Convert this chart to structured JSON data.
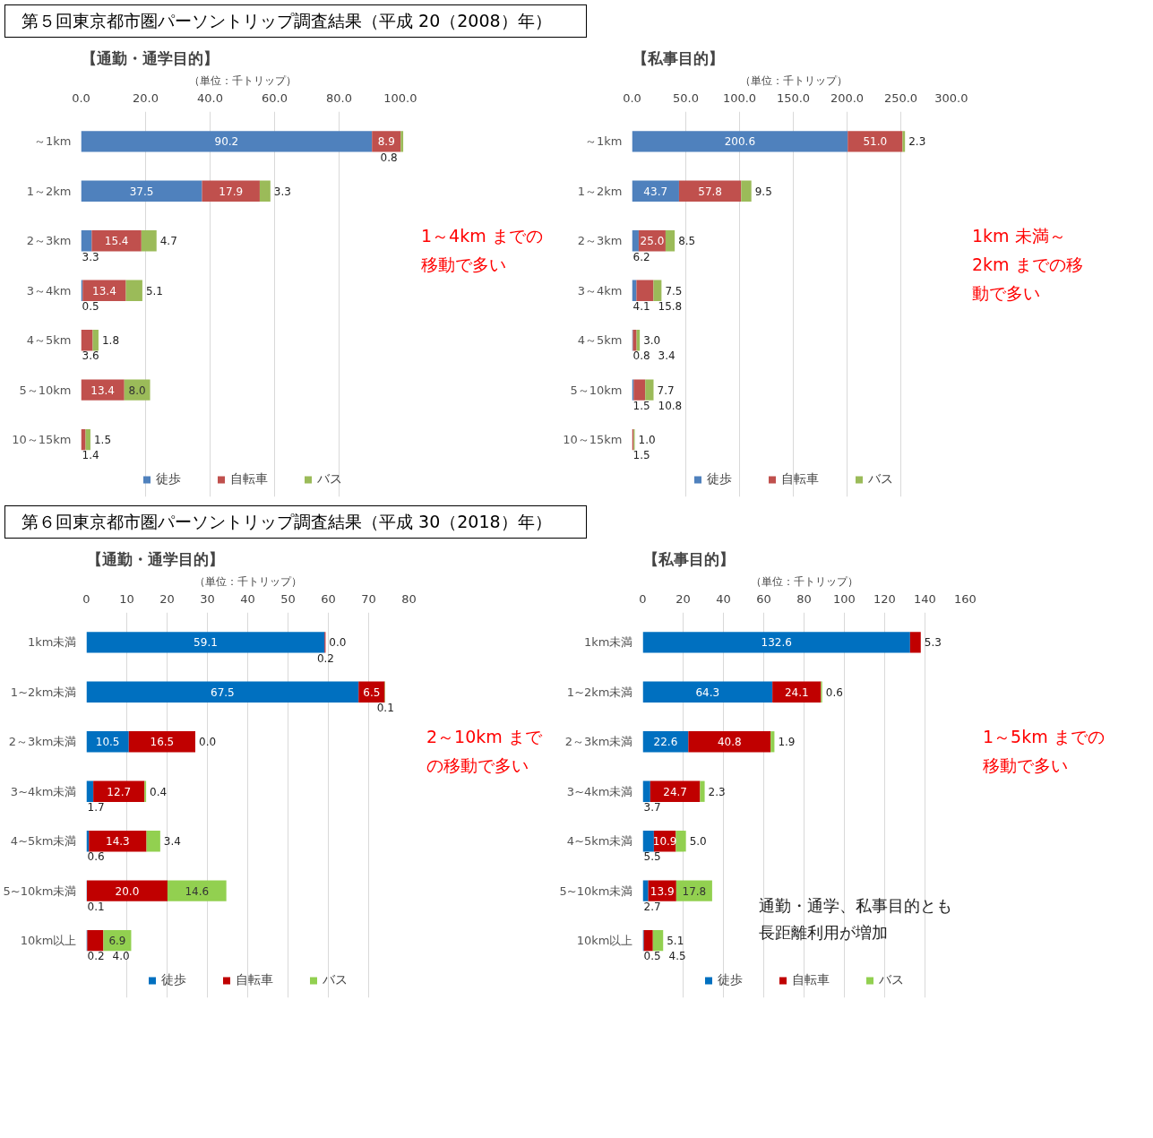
{
  "chart_data": [
    {
      "type": "bar",
      "orientation": "horizontal",
      "stacked": true,
      "subtitle": "第５回東京都市圏パーソントリップ調査結果（平成 20（2008）年）",
      "title": "【通勤・通学目的】",
      "xlabel": "（単位：千トリップ）",
      "categories": [
        "～1km",
        "1～2km",
        "2～3km",
        "3～4km",
        "4～5km",
        "5～10km",
        "10～15km"
      ],
      "series": [
        {
          "name": "徒歩",
          "color": "#4f81bd",
          "values": [
            90.2,
            37.5,
            3.3,
            0.5,
            null,
            null,
            null
          ],
          "value_labels": [
            "90.2",
            "37.5",
            "3.3",
            "0.5",
            null,
            null,
            null
          ]
        },
        {
          "name": "自転車",
          "color": "#c0504d",
          "values": [
            8.9,
            17.9,
            15.4,
            13.4,
            3.6,
            13.4,
            1.4
          ],
          "value_labels": [
            "8.9",
            "17.9",
            "15.4",
            "13.4",
            "3.6",
            "13.4",
            "1.4"
          ]
        },
        {
          "name": "バス",
          "color": "#9bbb59",
          "values": [
            0.8,
            3.3,
            4.7,
            5.1,
            1.8,
            8.0,
            1.5
          ],
          "value_labels": [
            "0.8",
            "3.3",
            "4.7",
            "5.1",
            "1.8",
            "8.0",
            "1.5"
          ]
        }
      ],
      "xlim": [
        0,
        100
      ],
      "xticks": [
        {
          "value": 0,
          "label": "0.0"
        },
        {
          "value": 20,
          "label": "20.0"
        },
        {
          "value": 40,
          "label": "40.0"
        },
        {
          "value": 60,
          "label": "60.0"
        },
        {
          "value": 80,
          "label": "80.0"
        },
        {
          "value": 100,
          "label": "100.0"
        }
      ],
      "grid": "x",
      "legend": "bottom",
      "annotations": [
        "1～4km までの移動で多い"
      ]
    },
    {
      "type": "bar",
      "orientation": "horizontal",
      "stacked": true,
      "title": "【私事目的】",
      "xlabel": "（単位：千トリップ）",
      "categories": [
        "～1km",
        "1～2km",
        "2～3km",
        "3～4km",
        "4～5km",
        "5～10km",
        "10～15km"
      ],
      "series": [
        {
          "name": "徒歩",
          "color": "#4f81bd",
          "values": [
            200.6,
            43.7,
            6.2,
            4.1,
            0.8,
            1.5,
            null
          ],
          "value_labels": [
            "200.6",
            "43.7",
            "6.2",
            "4.1",
            "0.8",
            "1.5",
            null
          ]
        },
        {
          "name": "自転車",
          "color": "#c0504d",
          "values": [
            51.0,
            57.8,
            25.0,
            15.8,
            3.4,
            10.8,
            1.5
          ],
          "value_labels": [
            "51.0",
            "57.8",
            "25.0",
            "15.8",
            "3.4",
            "10.8",
            "1.5"
          ]
        },
        {
          "name": "バス",
          "color": "#9bbb59",
          "values": [
            2.3,
            9.5,
            8.5,
            7.5,
            3.0,
            7.7,
            1.0
          ],
          "value_labels": [
            "2.3",
            "9.5",
            "8.5",
            "7.5",
            "3.0",
            "7.7",
            "1.0"
          ]
        }
      ],
      "xlim": [
        0,
        300
      ],
      "xticks": [
        {
          "value": 0,
          "label": "0.0"
        },
        {
          "value": 50,
          "label": "50.0"
        },
        {
          "value": 100,
          "label": "100.0"
        },
        {
          "value": 150,
          "label": "150.0"
        },
        {
          "value": 200,
          "label": "200.0"
        },
        {
          "value": 250,
          "label": "250.0"
        },
        {
          "value": 300,
          "label": "300.0"
        }
      ],
      "grid": "x",
      "legend": "bottom",
      "annotations": [
        "1km 未満～2km までの移動で多い"
      ]
    },
    {
      "type": "bar",
      "orientation": "horizontal",
      "stacked": true,
      "subtitle": "第６回東京都市圏パーソントリップ調査結果（平成 30（2018）年）",
      "title": "【通勤・通学目的】",
      "xlabel": "（単位：千トリップ）",
      "categories": [
        "1km未満",
        "1~2km未満",
        "2～3km未満",
        "3~4km未満",
        "4~5km未満",
        "5~10km未満",
        "10km以上"
      ],
      "series": [
        {
          "name": "徒歩",
          "color": "#0070c0",
          "values": [
            59.1,
            67.5,
            10.5,
            1.7,
            0.6,
            0.1,
            0.2
          ],
          "value_labels": [
            "59.1",
            "67.5",
            "10.5",
            "1.7",
            "0.6",
            "0.1",
            "0.2"
          ]
        },
        {
          "name": "自転車",
          "color": "#c00000",
          "values": [
            0.2,
            6.5,
            16.5,
            12.7,
            14.3,
            20.0,
            4.0
          ],
          "value_labels": [
            "0.2",
            "6.5",
            "16.5",
            "12.7",
            "14.3",
            "20.0",
            "4.0"
          ]
        },
        {
          "name": "バス",
          "color": "#92d050",
          "values": [
            0.0,
            0.1,
            0.0,
            0.4,
            3.4,
            14.6,
            6.9
          ],
          "value_labels": [
            "0.0",
            "0.1",
            "0.0",
            "0.4",
            "3.4",
            "14.6",
            "6.9"
          ]
        }
      ],
      "xlim": [
        0,
        80
      ],
      "xticks": [
        0,
        10,
        20,
        30,
        40,
        50,
        60,
        70,
        80
      ],
      "grid": "x",
      "legend": "bottom",
      "annotations": [
        "2～10km までの移動で多い"
      ]
    },
    {
      "type": "bar",
      "orientation": "horizontal",
      "stacked": true,
      "title": "【私事目的】",
      "xlabel": "（単位：千トリップ）",
      "categories": [
        "1km未満",
        "1~2km未満",
        "2～3km未満",
        "3~4km未満",
        "4~5km未満",
        "5~10km未満",
        "10km以上"
      ],
      "series": [
        {
          "name": "徒歩",
          "color": "#0070c0",
          "values": [
            132.6,
            64.3,
            22.6,
            3.7,
            5.5,
            2.7,
            0.5
          ],
          "value_labels": [
            "132.6",
            "64.3",
            "22.6",
            "3.7",
            "5.5",
            "2.7",
            "0.5"
          ]
        },
        {
          "name": "自転車",
          "color": "#c00000",
          "values": [
            5.3,
            24.1,
            40.8,
            24.7,
            10.9,
            13.9,
            4.5
          ],
          "value_labels": [
            "5.3",
            "24.1",
            "40.8",
            "24.7",
            "10.9",
            "13.9",
            "4.5"
          ]
        },
        {
          "name": "バス",
          "color": "#92d050",
          "values": [
            null,
            0.6,
            1.9,
            2.3,
            5.0,
            17.8,
            5.1
          ],
          "value_labels": [
            null,
            "0.6",
            "1.9",
            "2.3",
            "5.0",
            "17.8",
            "5.1"
          ]
        }
      ],
      "xlim": [
        0,
        160
      ],
      "xticks": [
        0,
        20,
        40,
        60,
        80,
        100,
        120,
        140,
        160
      ],
      "grid": "x",
      "legend": "bottom",
      "annotations": [
        "1～5km までの移動で多い",
        "通勤・通学、私事目的とも長距離利用が増加"
      ]
    }
  ]
}
